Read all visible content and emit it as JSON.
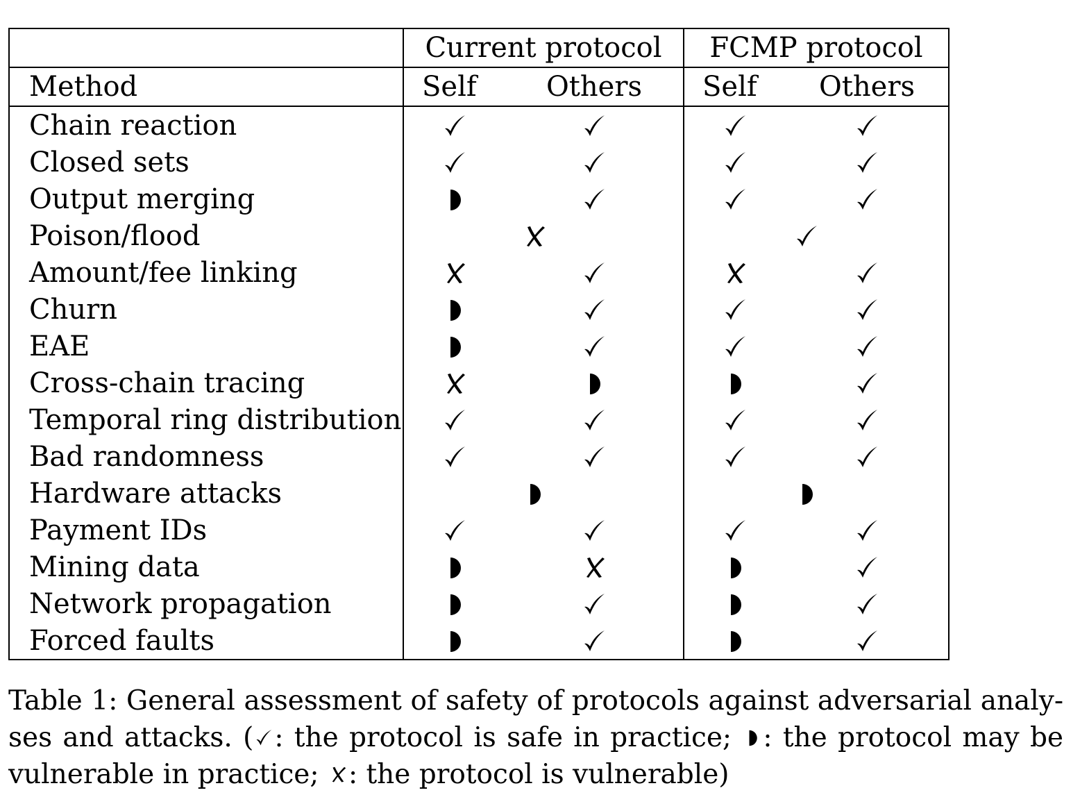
{
  "table": {
    "group_headers": [
      "Current protocol",
      "FCMP protocol"
    ],
    "method_header": "Method",
    "sub_headers": [
      "Self",
      "Others",
      "Self",
      "Others"
    ],
    "rows": [
      {
        "method": "Chain reaction",
        "current_self": "safe",
        "current_others": "safe",
        "fcmp_self": "safe",
        "fcmp_others": "safe"
      },
      {
        "method": "Closed sets",
        "current_self": "safe",
        "current_others": "safe",
        "fcmp_self": "safe",
        "fcmp_others": "safe"
      },
      {
        "method": "Output merging",
        "current_self": "may-be-vulnerable",
        "current_others": "safe",
        "fcmp_self": "safe",
        "fcmp_others": "safe"
      },
      {
        "method": "Poison/flood",
        "merged": true,
        "current": "vulnerable",
        "fcmp": "safe"
      },
      {
        "method": "Amount/fee linking",
        "current_self": "vulnerable",
        "current_others": "safe",
        "fcmp_self": "vulnerable",
        "fcmp_others": "safe"
      },
      {
        "method": "Churn",
        "current_self": "may-be-vulnerable",
        "current_others": "safe",
        "fcmp_self": "safe",
        "fcmp_others": "safe"
      },
      {
        "method": "EAE",
        "current_self": "may-be-vulnerable",
        "current_others": "safe",
        "fcmp_self": "safe",
        "fcmp_others": "safe"
      },
      {
        "method": "Cross-chain tracing",
        "current_self": "vulnerable",
        "current_others": "may-be-vulnerable",
        "fcmp_self": "may-be-vulnerable",
        "fcmp_others": "safe"
      },
      {
        "method": "Temporal ring distribution",
        "current_self": "safe",
        "current_others": "safe",
        "fcmp_self": "safe",
        "fcmp_others": "safe"
      },
      {
        "method": "Bad randomness",
        "current_self": "safe",
        "current_others": "safe",
        "fcmp_self": "safe",
        "fcmp_others": "safe"
      },
      {
        "method": "Hardware attacks",
        "merged": true,
        "current": "may-be-vulnerable",
        "fcmp": "may-be-vulnerable"
      },
      {
        "method": "Payment IDs",
        "current_self": "safe",
        "current_others": "safe",
        "fcmp_self": "safe",
        "fcmp_others": "safe"
      },
      {
        "method": "Mining data",
        "current_self": "may-be-vulnerable",
        "current_others": "vulnerable",
        "fcmp_self": "may-be-vulnerable",
        "fcmp_others": "safe"
      },
      {
        "method": "Network propagation",
        "current_self": "may-be-vulnerable",
        "current_others": "safe",
        "fcmp_self": "may-be-vulnerable",
        "fcmp_others": "safe"
      },
      {
        "method": "Forced faults",
        "current_self": "may-be-vulnerable",
        "current_others": "safe",
        "fcmp_self": "may-be-vulnerable",
        "fcmp_others": "safe"
      }
    ]
  },
  "caption": {
    "line1": "Table 1:  General assessment of safety of protocols against adversarial analy-",
    "line2_a": "ses and attacks.  (",
    "line2_b": ":  the protocol is safe in practice; ",
    "line2_c": ":  the protocol may be",
    "line3_a": "vulnerable in practice; ",
    "line3_b": ":  the protocol is vulnerable)"
  }
}
